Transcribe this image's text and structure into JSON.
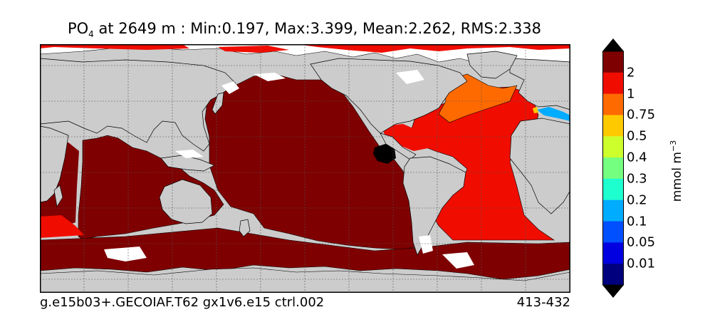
{
  "title": {
    "variable": "PO",
    "subscript": "4",
    "rest": " at 2649 m : Min:0.197, Max:3.399, Mean:2.262, RMS:2.338"
  },
  "footer": {
    "case": "g.e15b03+.GECOIAF.T62 gx1v6.e15 ctrl.002",
    "years": "413-432"
  },
  "colorbar": {
    "units": "mmol m",
    "units_exp": "−3",
    "levels": [
      "0.01",
      "0.05",
      "0.1",
      "0.2",
      "0.3",
      "0.4",
      "0.5",
      "0.75",
      "1",
      "2"
    ],
    "colors": [
      "#00007f",
      "#0000e0",
      "#0050ff",
      "#00acff",
      "#1effd0",
      "#74ff81",
      "#ccff2c",
      "#ffc900",
      "#ff6a00",
      "#f00d00",
      "#7f0000"
    ],
    "under_color": "#000000",
    "over_color": "#000000"
  },
  "map": {
    "land_color": "#cccccc",
    "nodata_color": "#ffffff",
    "grid": true,
    "regions": [
      {
        "name": "deep-ocean",
        "value_class": "above 2",
        "color": "#7f0000"
      },
      {
        "name": "atlantic-ocean",
        "value_class": "1 to 2",
        "color": "#f00d00"
      },
      {
        "name": "north-atlantic-labrador",
        "value_class": "0.75 to 1",
        "color": "#ff6a00"
      },
      {
        "name": "mediterranean",
        "value_class": "0.1 to 0.75",
        "color": "#00acff"
      },
      {
        "name": "east-pacific-anomaly",
        "value_class": "below range",
        "color": "#000000"
      }
    ]
  }
}
